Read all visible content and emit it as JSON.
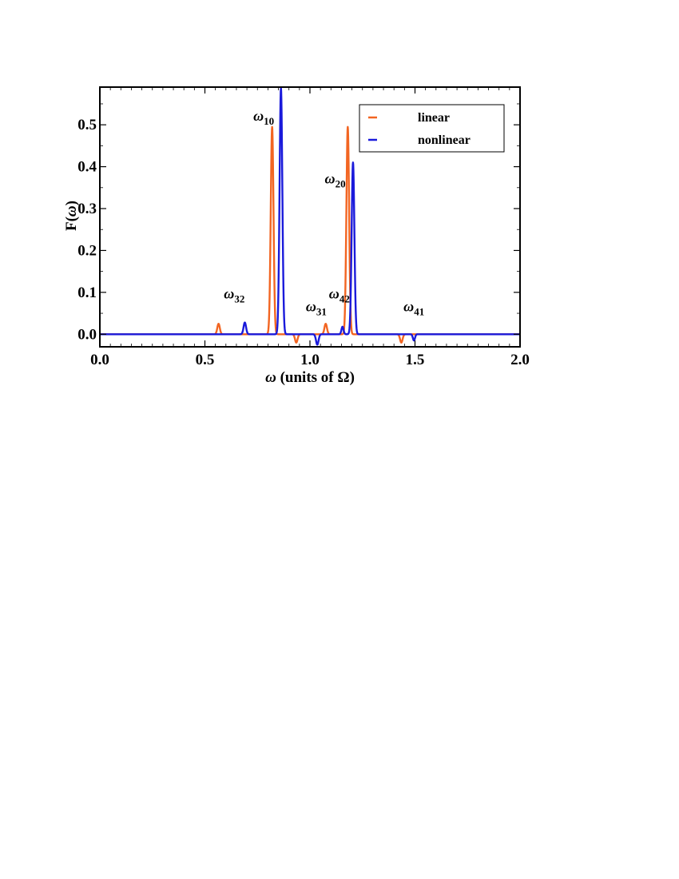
{
  "chart_data": {
    "type": "line",
    "xlabel_symbol": "ω",
    "xlabel_rest": " (units of Ω)",
    "ylabel_main": "F(",
    "ylabel_symbol": "ω",
    "ylabel_end": ")",
    "xlim": [
      0.0,
      2.0
    ],
    "ylim": [
      -0.03,
      0.59
    ],
    "x_ticks": [
      0.0,
      0.5,
      1.0,
      1.5,
      2.0
    ],
    "x_tick_labels": [
      "0.0",
      "0.5",
      "1.0",
      "1.5",
      "2.0"
    ],
    "y_ticks": [
      0.0,
      0.1,
      0.2,
      0.3,
      0.4,
      0.5
    ],
    "y_tick_labels": [
      "0.0",
      "0.1",
      "0.2",
      "0.3",
      "0.4",
      "0.5"
    ],
    "grid": false,
    "legend_position": "top-right",
    "series": [
      {
        "name": "linear",
        "color": "#f26522",
        "peaks": [
          {
            "x": 0.565,
            "y": 0.025,
            "w": 0.006
          },
          {
            "x": 0.82,
            "y": 0.495,
            "w": 0.0065
          },
          {
            "x": 0.935,
            "y": -0.02,
            "w": 0.006
          },
          {
            "x": 1.075,
            "y": 0.025,
            "w": 0.006
          },
          {
            "x": 1.18,
            "y": 0.495,
            "w": 0.0065
          },
          {
            "x": 1.435,
            "y": -0.02,
            "w": 0.006
          }
        ]
      },
      {
        "name": "nonlinear",
        "color": "#1a1adb",
        "peaks": [
          {
            "x": 0.69,
            "y": 0.028,
            "w": 0.006
          },
          {
            "x": 0.862,
            "y": 0.588,
            "w": 0.0065
          },
          {
            "x": 1.035,
            "y": -0.025,
            "w": 0.006
          },
          {
            "x": 1.155,
            "y": 0.018,
            "w": 0.005
          },
          {
            "x": 1.205,
            "y": 0.41,
            "w": 0.0065
          },
          {
            "x": 1.495,
            "y": -0.015,
            "w": 0.005
          }
        ]
      }
    ],
    "annotations": [
      {
        "sym": "ω",
        "sub": "10",
        "x": 0.78,
        "y": 0.51
      },
      {
        "sym": "ω",
        "sub": "20",
        "x": 1.12,
        "y": 0.36
      },
      {
        "sym": "ω",
        "sub": "32",
        "x": 0.64,
        "y": 0.085
      },
      {
        "sym": "ω",
        "sub": "31",
        "x": 1.03,
        "y": 0.055
      },
      {
        "sym": "ω",
        "sub": "42",
        "x": 1.14,
        "y": 0.085
      },
      {
        "sym": "ω",
        "sub": "41",
        "x": 1.495,
        "y": 0.055
      }
    ]
  }
}
